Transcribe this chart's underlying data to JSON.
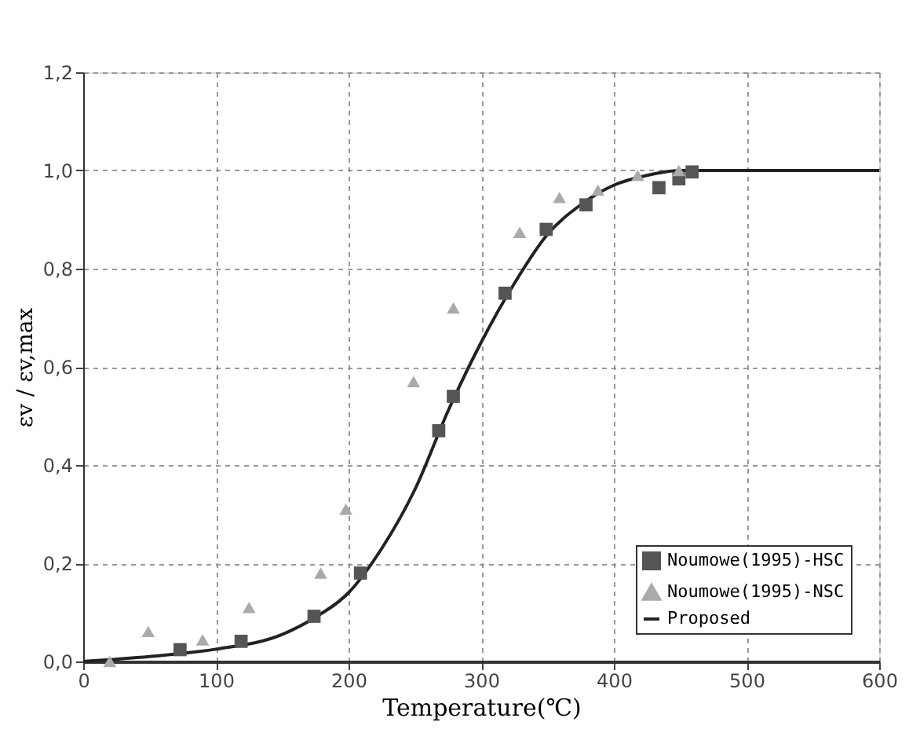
{
  "chart_data": {
    "type": "scatter",
    "xlabel": "Temperature(℃)",
    "ylabel": "εv / εv,max",
    "xlim": [
      0,
      600
    ],
    "xticks": [
      0,
      100,
      200,
      300,
      400,
      500,
      600
    ],
    "ylim": [
      0,
      1.2
    ],
    "yticks": [
      {
        "value": 0,
        "label": "0,0"
      },
      {
        "value": 0.2,
        "label": "0,2"
      },
      {
        "value": 0.4,
        "label": "0,4"
      },
      {
        "value": 0.6,
        "label": "0,6"
      },
      {
        "value": 0.8,
        "label": "0,8"
      },
      {
        "value": 1.0,
        "label": "1,0"
      },
      {
        "value": 1.2,
        "label": "1,2"
      }
    ],
    "grid": true,
    "legend": "bottom right",
    "series": [
      {
        "name": "Noumowe(1995)-HSC",
        "marker": "square",
        "color": "#555555",
        "x": [
          73,
          119,
          174,
          209,
          268,
          279,
          318,
          349,
          379,
          434,
          449,
          459
        ],
        "values": [
          0.024,
          0.041,
          0.092,
          0.18,
          0.47,
          0.54,
          0.75,
          0.88,
          0.93,
          0.965,
          0.983,
          0.997
        ]
      },
      {
        "name": "Noumowe(1995)-NSC",
        "marker": "triangle",
        "color": "#aaaaaa",
        "x": [
          20,
          49,
          90,
          125,
          179,
          198,
          249,
          279,
          329,
          359,
          388,
          418,
          449
        ],
        "values": [
          0.0,
          0.061,
          0.044,
          0.11,
          0.18,
          0.31,
          0.57,
          0.72,
          0.874,
          0.945,
          0.96,
          0.99,
          1.0
        ]
      },
      {
        "name": "Proposed",
        "type": "line",
        "marker": "none",
        "line_style": "solid",
        "color": "#222222",
        "x": [
          0,
          50,
          100,
          150,
          175,
          200,
          225,
          250,
          275,
          300,
          325,
          350,
          375,
          400,
          425,
          450,
          500,
          600
        ],
        "values": [
          0.0,
          0.01,
          0.025,
          0.055,
          0.09,
          0.14,
          0.23,
          0.35,
          0.51,
          0.65,
          0.77,
          0.87,
          0.93,
          0.97,
          0.99,
          1.0,
          1.0,
          1.0
        ]
      }
    ]
  }
}
